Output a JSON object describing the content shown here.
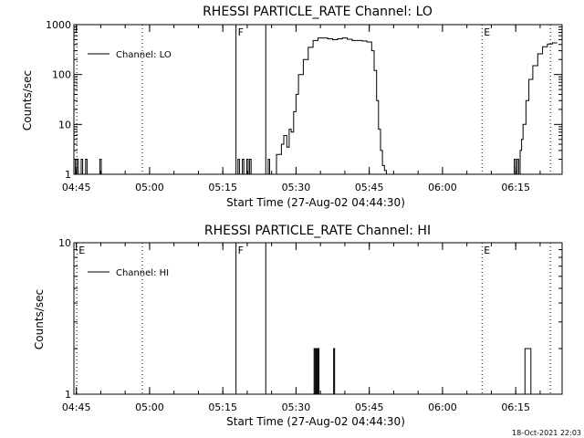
{
  "chart_data": [
    {
      "type": "line",
      "title": "RHESSI PARTICLE_RATE Channel: LO",
      "xlabel": "Start Time (27-Aug-02 04:44:30)",
      "ylabel": "Counts/sec",
      "y_scale": "log",
      "ylim": [
        1,
        1000
      ],
      "y_ticks": [
        "1",
        "10",
        "100",
        "1000"
      ],
      "x_ticks": [
        "04:45",
        "05:00",
        "05:15",
        "05:30",
        "05:45",
        "06:00",
        "06:15"
      ],
      "x_tick_minutes": [
        0.5,
        15.5,
        30.5,
        45.5,
        60.5,
        75.5,
        90.5
      ],
      "xlim_minutes": [
        0,
        100
      ],
      "grid": false,
      "legend_position": "top-left",
      "series": [
        {
          "name": "Channel: LO",
          "x_minutes": [
            0,
            0.3,
            0.6,
            0.9,
            1.2,
            1.5,
            1.8,
            2.1,
            2.4,
            2.7,
            3.0,
            5.0,
            5.3,
            5.6,
            5.9,
            33.3,
            33.6,
            33.9,
            34.2,
            34.5,
            34.8,
            35.1,
            35.4,
            35.7,
            36.0,
            36.3,
            36.6,
            36.9,
            39.5,
            39.8,
            40.1,
            40.4,
            40.7,
            41.5,
            42.5,
            43.0,
            43.6,
            44.1,
            44.5,
            45.0,
            45.5,
            46.0,
            47.0,
            48.0,
            49.0,
            50.0,
            51.0,
            52.0,
            53.0,
            54.0,
            55.0,
            56.0,
            57.0,
            58.0,
            59.0,
            60.0,
            61.0,
            61.5,
            62.0,
            62.4,
            62.8,
            63.2,
            63.6,
            64.0,
            64.5,
            89.9,
            90.2,
            90.5,
            90.8,
            91.1,
            91.4,
            91.7,
            92.0,
            92.6,
            93.2,
            94.0,
            95.0,
            96.0,
            97.0,
            98.0,
            99.0
          ],
          "values": [
            2,
            1,
            2,
            1,
            1,
            2,
            1,
            1,
            2,
            1,
            1,
            1,
            2,
            1,
            1,
            1,
            2,
            1,
            1,
            2,
            1,
            1,
            2,
            1,
            2,
            1,
            1,
            1,
            1,
            2,
            1,
            1,
            1,
            2.5,
            4,
            6,
            3.5,
            8,
            7,
            18,
            40,
            100,
            200,
            350,
            480,
            540,
            540,
            520,
            500,
            520,
            540,
            510,
            480,
            480,
            470,
            450,
            300,
            120,
            30,
            8,
            3,
            1.5,
            1.2,
            1,
            1,
            1,
            2,
            1,
            2,
            1,
            3,
            5,
            10,
            30,
            80,
            150,
            260,
            360,
            410,
            430,
            430
          ]
        }
      ],
      "markers": [
        {
          "label": "",
          "minute": 0.6,
          "style": "dotted"
        },
        {
          "label": "",
          "minute": 14.0,
          "style": "dotted"
        },
        {
          "label": "F",
          "minute": 33.2,
          "style": "solid"
        },
        {
          "label": "",
          "minute": 39.3,
          "style": "solid"
        },
        {
          "label": "E",
          "minute": 83.6,
          "style": "dotted"
        },
        {
          "label": "",
          "minute": 97.6,
          "style": "dotted"
        }
      ]
    },
    {
      "type": "line",
      "title": "RHESSI PARTICLE_RATE Channel: HI",
      "xlabel": "Start Time (27-Aug-02 04:44:30)",
      "ylabel": "Counts/sec",
      "y_scale": "log",
      "ylim": [
        1,
        10
      ],
      "y_ticks": [
        "1",
        "10"
      ],
      "x_ticks": [
        "04:45",
        "05:00",
        "05:15",
        "05:30",
        "05:45",
        "06:00",
        "06:15"
      ],
      "x_tick_minutes": [
        0.5,
        15.5,
        30.5,
        45.5,
        60.5,
        75.5,
        90.5
      ],
      "xlim_minutes": [
        0,
        100
      ],
      "grid": false,
      "legend_position": "top-left",
      "series": [
        {
          "name": "Channel: HI",
          "x_minutes": [
            0,
            49.0,
            49.2,
            49.4,
            49.6,
            49.8,
            50.0,
            50.2,
            53.0,
            53.2,
            53.4,
            53.6,
            92.0,
            92.2,
            92.4,
            93.4,
            93.6,
            93.8,
            100
          ],
          "values": [
            1,
            1,
            2,
            1,
            2,
            1,
            2,
            1,
            1,
            2,
            1,
            1,
            1,
            1,
            2,
            2,
            1,
            1,
            1
          ]
        }
      ],
      "markers": [
        {
          "label": "E",
          "minute": 0.6,
          "style": "dotted"
        },
        {
          "label": "",
          "minute": 14.0,
          "style": "dotted"
        },
        {
          "label": "F",
          "minute": 33.2,
          "style": "solid"
        },
        {
          "label": "",
          "minute": 39.3,
          "style": "solid"
        },
        {
          "label": "E",
          "minute": 83.6,
          "style": "dotted"
        },
        {
          "label": "",
          "minute": 97.6,
          "style": "dotted"
        }
      ]
    }
  ],
  "timestamp": "18-Oct-2021 22:03"
}
